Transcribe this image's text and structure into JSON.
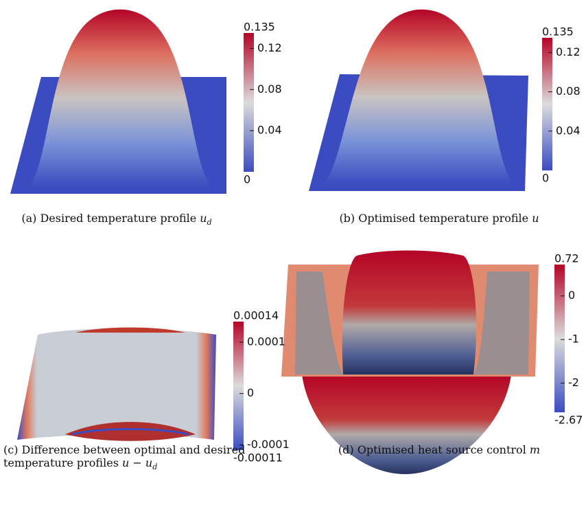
{
  "panels": [
    {
      "caption": [
        "(a) Desired temperature profile"
      ],
      "math": {
        "main": "u",
        "sub": "d"
      },
      "colorbar": {
        "max": 0.135,
        "min": 0,
        "ticks": [
          0.12,
          0.08,
          0.04
        ]
      }
    },
    {
      "caption": [
        "(b) Optimised temperature profile"
      ],
      "math": {
        "main": "u"
      },
      "colorbar": {
        "max": 0.135,
        "min": 0,
        "ticks": [
          0.12,
          0.08,
          0.04
        ]
      }
    },
    {
      "caption": [
        "(c) Difference between optimal and desired",
        "temperature profiles"
      ],
      "math": {
        "main": "u − u",
        "sub": "d"
      },
      "colorbar": {
        "max": 0.00014,
        "min": -0.00011,
        "ticks": [
          0.0001,
          0,
          -0.0001
        ]
      }
    },
    {
      "caption": [
        "(d) Optimised heat source control"
      ],
      "math": {
        "main": "m"
      },
      "colorbar": {
        "max": 0.72,
        "min": -2.67,
        "ticks": [
          0,
          -1,
          -2
        ]
      }
    }
  ]
}
